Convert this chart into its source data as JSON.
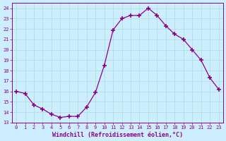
{
  "x": [
    0,
    1,
    2,
    3,
    4,
    5,
    6,
    7,
    8,
    9,
    10,
    11,
    12,
    13,
    14,
    15,
    16,
    17,
    18,
    19,
    20,
    21,
    22,
    23
  ],
  "y": [
    16.0,
    15.8,
    14.7,
    14.3,
    13.8,
    13.5,
    13.6,
    13.6,
    14.5,
    15.9,
    18.5,
    21.9,
    23.0,
    23.3,
    23.3,
    24.0,
    23.3,
    22.3,
    21.5,
    21.0,
    20.0,
    19.0,
    17.3,
    16.2
  ],
  "line_color": "#8b008b",
  "marker": "+",
  "marker_size": 4,
  "marker_linewidth": 1.2,
  "linewidth": 0.9,
  "bg_color": "#cceeff",
  "grid_color": "#aadddd",
  "xlabel": "Windchill (Refroidissement éolien,°C)",
  "ylim": [
    13,
    24.5
  ],
  "xlim": [
    -0.5,
    23.5
  ],
  "yticks": [
    13,
    14,
    15,
    16,
    17,
    18,
    19,
    20,
    21,
    22,
    23,
    24
  ],
  "xticks": [
    0,
    1,
    2,
    3,
    4,
    5,
    6,
    7,
    8,
    9,
    10,
    11,
    12,
    13,
    14,
    15,
    16,
    17,
    18,
    19,
    20,
    21,
    22,
    23
  ],
  "tick_color": "#8b008b",
  "tick_fontsize": 5.0,
  "xlabel_fontsize": 6.0,
  "ylabel_fontsize": 5.0
}
